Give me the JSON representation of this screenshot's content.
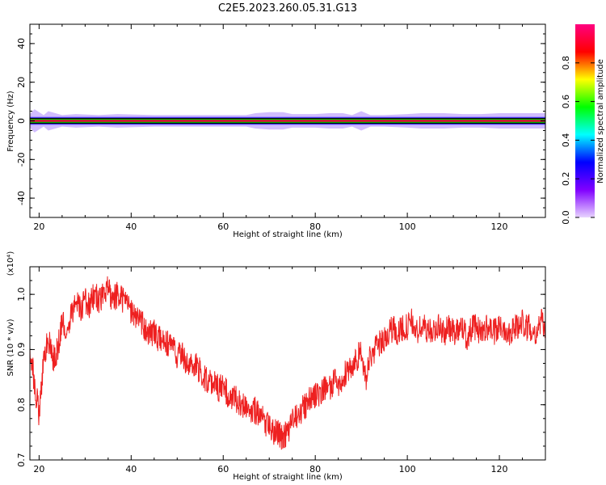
{
  "title": "C2E5.2023.260.05.31.G13",
  "chart_data": [
    {
      "type": "heatmap",
      "xlabel": "Height of straight line (km)",
      "ylabel": "Frequency (Hz)",
      "xlim": [
        18,
        130
      ],
      "ylim": [
        -50,
        50
      ],
      "x_ticks": [
        20,
        40,
        60,
        80,
        100,
        120
      ],
      "y_ticks": [
        -40,
        -20,
        0,
        20,
        40
      ],
      "colorbar": {
        "label": "Normalized spectral amplitude",
        "range": [
          0,
          1
        ],
        "ticks": [
          "0.0",
          "0.2",
          "0.4",
          "0.6",
          "0.8"
        ],
        "colors": [
          "#e8d4ff",
          "#8000ff",
          "#0000ff",
          "#00ffff",
          "#00ff00",
          "#ffff00",
          "#ff0000",
          "#ff0080"
        ]
      },
      "ridge": {
        "frequency_hz": 0,
        "peak_amplitude": 0.9,
        "halo_halfwidth_hz": [
          [
            18,
            3.5
          ],
          [
            19,
            6
          ],
          [
            21,
            3
          ],
          [
            22,
            5
          ],
          [
            25,
            3
          ],
          [
            28,
            3.5
          ],
          [
            33,
            3
          ],
          [
            37,
            3.5
          ],
          [
            45,
            3
          ],
          [
            55,
            3
          ],
          [
            65,
            3
          ],
          [
            67,
            4
          ],
          [
            70,
            4.5
          ],
          [
            73,
            4.5
          ],
          [
            75,
            3.5
          ],
          [
            80,
            3.5
          ],
          [
            83,
            4
          ],
          [
            86,
            4
          ],
          [
            88,
            3
          ],
          [
            90,
            5
          ],
          [
            92,
            3
          ],
          [
            95,
            3
          ],
          [
            100,
            3.5
          ],
          [
            103,
            4
          ],
          [
            108,
            4
          ],
          [
            112,
            3.5
          ],
          [
            116,
            3.5
          ],
          [
            120,
            4
          ],
          [
            124,
            4
          ],
          [
            130,
            4
          ]
        ]
      }
    },
    {
      "type": "line",
      "xlabel": "Height of straight line (km)",
      "ylabel": "SNR (10 * v/v)",
      "yscale_label": "(x10⁴)",
      "xlim": [
        18,
        130
      ],
      "ylim": [
        0.7,
        1.05
      ],
      "x_ticks": [
        20,
        40,
        60,
        80,
        100,
        120
      ],
      "y_ticks": [
        "0.7",
        "0.8",
        "0.9",
        "1.0"
      ],
      "color": "#ee2020",
      "series": [
        {
          "x": [
            18,
            19,
            20,
            21,
            22,
            23,
            24,
            25,
            26,
            27,
            28,
            29,
            30,
            31,
            32,
            33,
            34,
            35,
            36,
            37,
            38,
            39,
            40,
            41,
            42,
            43,
            44,
            45,
            46,
            47,
            48,
            49,
            50,
            51,
            52,
            53,
            54,
            55,
            56,
            57,
            58,
            59,
            60,
            61,
            62,
            63,
            64,
            65,
            66,
            67,
            68,
            69,
            70,
            71,
            72,
            73,
            74,
            75,
            76,
            77,
            78,
            79,
            80,
            81,
            82,
            83,
            84,
            85,
            86,
            87,
            88,
            89,
            90,
            91,
            92,
            93,
            94,
            95,
            96,
            97,
            98,
            99,
            100,
            101,
            102,
            103,
            104,
            105,
            106,
            107,
            108,
            109,
            110,
            111,
            112,
            113,
            114,
            115,
            116,
            117,
            118,
            119,
            120,
            121,
            122,
            123,
            124,
            125,
            126,
            127,
            128,
            129,
            130
          ],
          "y": [
            0.9,
            0.84,
            0.78,
            0.88,
            0.92,
            0.88,
            0.9,
            0.95,
            0.94,
            0.96,
            0.99,
            0.97,
            0.99,
            0.98,
            1.0,
            0.99,
            1.0,
            1.01,
            0.99,
            1.0,
            0.99,
            0.98,
            0.97,
            0.96,
            0.95,
            0.94,
            0.93,
            0.93,
            0.92,
            0.91,
            0.91,
            0.9,
            0.89,
            0.89,
            0.88,
            0.87,
            0.87,
            0.86,
            0.85,
            0.84,
            0.84,
            0.83,
            0.83,
            0.82,
            0.81,
            0.81,
            0.8,
            0.8,
            0.79,
            0.79,
            0.78,
            0.77,
            0.76,
            0.75,
            0.75,
            0.74,
            0.75,
            0.77,
            0.78,
            0.79,
            0.8,
            0.81,
            0.82,
            0.82,
            0.83,
            0.83,
            0.84,
            0.84,
            0.85,
            0.86,
            0.87,
            0.88,
            0.9,
            0.84,
            0.89,
            0.9,
            0.91,
            0.92,
            0.93,
            0.94,
            0.93,
            0.94,
            0.94,
            0.95,
            0.93,
            0.94,
            0.94,
            0.93,
            0.94,
            0.94,
            0.93,
            0.94,
            0.93,
            0.94,
            0.94,
            0.92,
            0.94,
            0.94,
            0.93,
            0.94,
            0.94,
            0.93,
            0.94,
            0.94,
            0.93,
            0.94,
            0.94,
            0.95,
            0.94,
            0.94,
            0.93,
            0.95,
            0.94
          ]
        }
      ]
    }
  ]
}
